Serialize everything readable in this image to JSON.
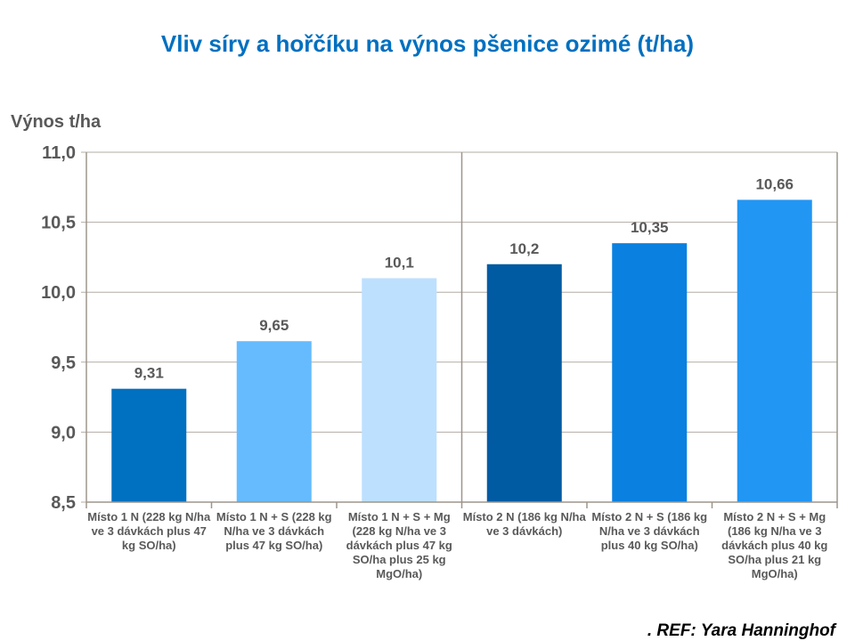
{
  "title": "Vliv síry a hořčíku na výnos pšenice ozimé (t/ha)",
  "reference": ". REF: Yara Hanninghof",
  "chart_data": {
    "type": "bar",
    "ylabel": "Výnos t/ha",
    "xlabel": "",
    "ylim": [
      8.5,
      11.0
    ],
    "yticks": [
      "8,5",
      "9,0",
      "9,5",
      "10,0",
      "10,5",
      "11,0"
    ],
    "ytick_values": [
      8.5,
      9.0,
      9.5,
      10.0,
      10.5,
      11.0
    ],
    "grid": true,
    "categories": [
      "Místo 1 N (228 kg N/ha ve 3 dávkách plus 47 kg SO/ha)",
      "Místo 1 N + S (228 kg N/ha ve 3 dávkách plus 47 kg SO/ha)",
      "Místo 1 N + S + Mg (228 kg N/ha ve 3 dávkách plus 47 kg SO/ha plus 25 kg MgO/ha)",
      "Místo 2 N (186 kg N/ha ve 3 dávkách)",
      "Místo 2 N + S (186 kg N/ha ve 3 dávkách plus 40 kg SO/ha)",
      "Místo 2 N + S + Mg (186 kg N/ha ve 3 dávkách plus 40 kg SO/ha plus 21 kg MgO/ha)"
    ],
    "values": [
      9.31,
      9.65,
      10.1,
      10.2,
      10.35,
      10.66
    ],
    "value_labels": [
      "9,31",
      "9,65",
      "10,1",
      "10,2",
      "10,35",
      "10,66"
    ],
    "colors": [
      "#0070c0",
      "#66bbff",
      "#bde0ff",
      "#005ba3",
      "#0a80e0",
      "#2196f3"
    ]
  }
}
